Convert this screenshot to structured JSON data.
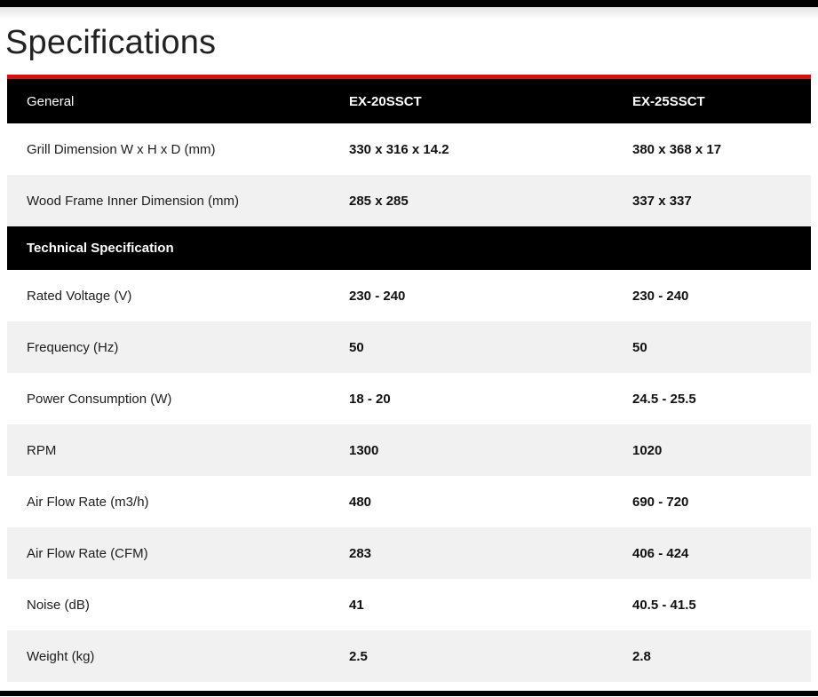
{
  "page": {
    "title": "Specifications"
  },
  "table": {
    "header": {
      "section_label": "General",
      "columns": [
        "EX-20SSCT",
        "EX-25SSCT"
      ]
    },
    "technical_section_label": "Technical Specification",
    "rows_general": [
      {
        "label": "Grill Dimension W x H x D (mm)",
        "ex20": "330 x 316 x 14.2",
        "ex25": "380 x 368 x 17"
      },
      {
        "label": "Wood Frame Inner Dimension (mm)",
        "ex20": "285 x 285",
        "ex25": "337 x 337"
      }
    ],
    "rows_technical": [
      {
        "label": "Rated Voltage (V)",
        "ex20": "230 - 240",
        "ex25": "230 - 240"
      },
      {
        "label": "Frequency (Hz)",
        "ex20": "50",
        "ex25": "50"
      },
      {
        "label": "Power Consumption (W)",
        "ex20": "18 - 20",
        "ex25": "24.5 - 25.5"
      },
      {
        "label": "RPM",
        "ex20": "1300",
        "ex25": "1020"
      },
      {
        "label": "Air Flow Rate (m3/h)",
        "ex20": "480",
        "ex25": "690 - 720"
      },
      {
        "label": "Air Flow Rate (CFM)",
        "ex20": "283",
        "ex25": "406 - 424"
      },
      {
        "label": "Noise (dB)",
        "ex20": "41",
        "ex25": "40.5 - 41.5"
      },
      {
        "label": "Weight (kg)",
        "ex20": "2.5",
        "ex25": "2.8"
      }
    ],
    "colors": {
      "accent_red": "#d21111",
      "header_bg": "#000000",
      "alt_row_bg": "#f1f1f1"
    }
  }
}
